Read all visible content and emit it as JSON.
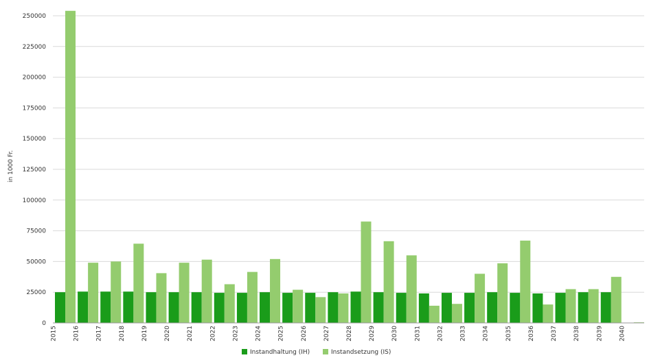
{
  "chart_data": {
    "type": "bar",
    "title": "",
    "xlabel": "",
    "ylabel": "in 1000 Fr.",
    "ylim": [
      0,
      255000
    ],
    "yticks": [
      0,
      25000,
      50000,
      75000,
      100000,
      125000,
      150000,
      175000,
      200000,
      225000,
      250000
    ],
    "grid": true,
    "legend_position": "bottom",
    "categories": [
      "2015",
      "2016",
      "2017",
      "2018",
      "2019",
      "2020",
      "2021",
      "2022",
      "2023",
      "2024",
      "2025",
      "2026",
      "2027",
      "2028",
      "2029",
      "2030",
      "2031",
      "2032",
      "2033",
      "2034",
      "2035",
      "2036",
      "2037",
      "2038",
      "2039",
      "2040"
    ],
    "series": [
      {
        "name": "Instandhaltung (IH)",
        "color": "#1a9c1a",
        "values": [
          25000,
          25500,
          25500,
          25500,
          25000,
          25000,
          25000,
          24500,
          24500,
          25000,
          24500,
          24500,
          25000,
          25500,
          25000,
          24500,
          24000,
          24500,
          24500,
          25000,
          24500,
          24000,
          24500,
          25000,
          25000,
          0
        ]
      },
      {
        "name": "Instandsetzung (IS)",
        "color": "#94cc6e",
        "values": [
          254000,
          49000,
          50000,
          64500,
          40500,
          49000,
          51500,
          31500,
          41500,
          52000,
          27000,
          21000,
          24000,
          82500,
          66500,
          55000,
          14000,
          15500,
          40000,
          48500,
          67000,
          15000,
          27500,
          27500,
          37500,
          500
        ]
      }
    ]
  }
}
